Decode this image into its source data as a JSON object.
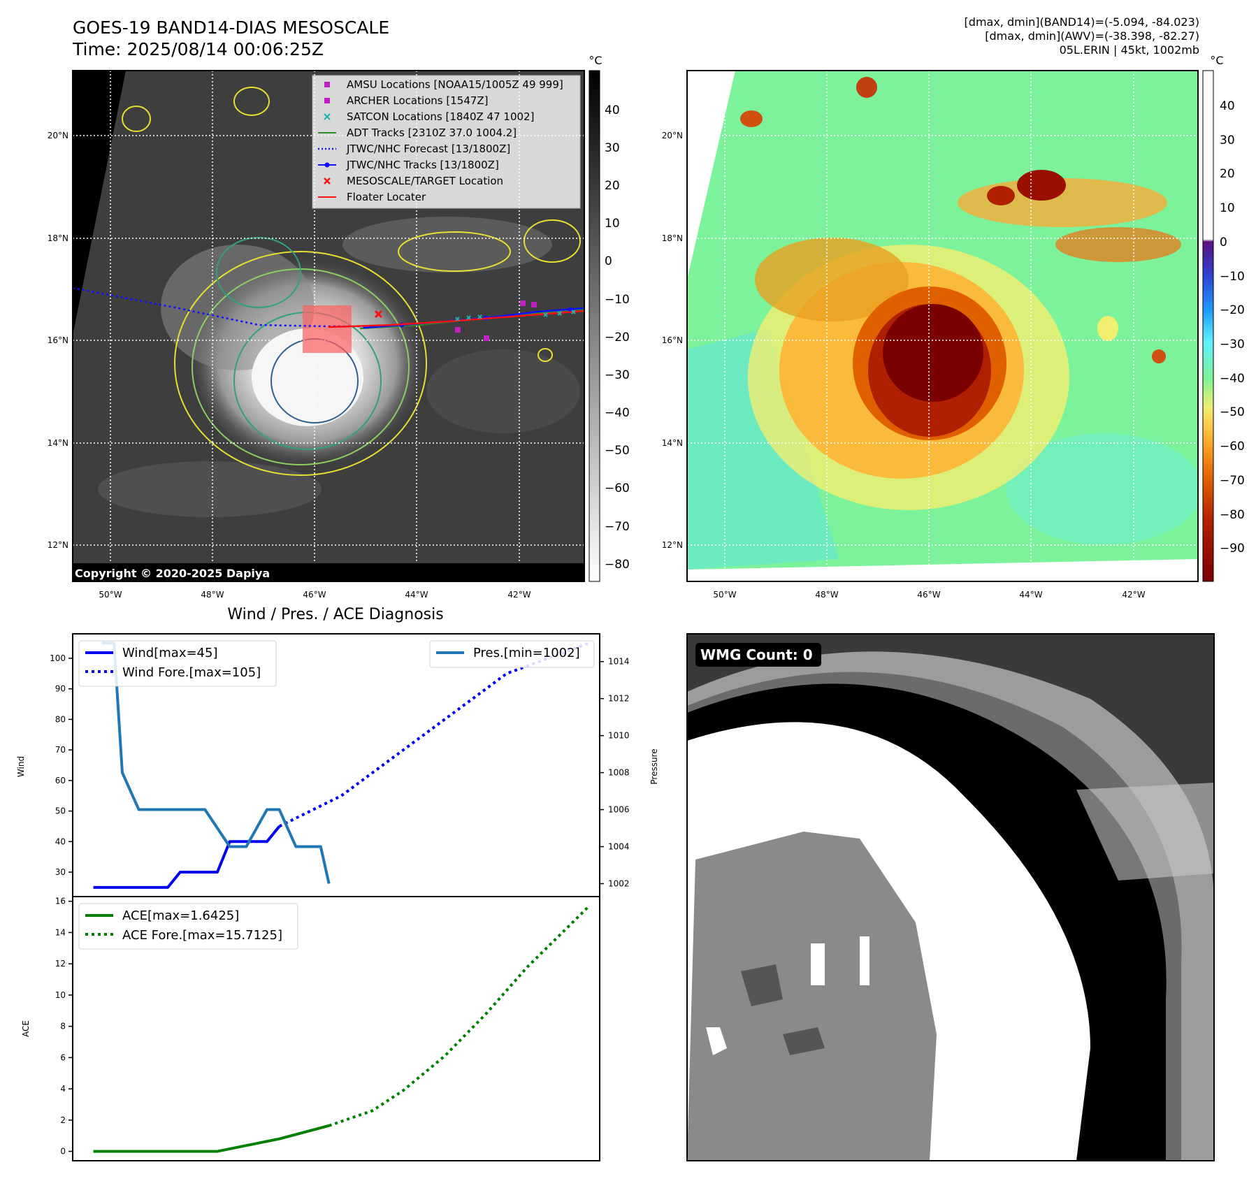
{
  "header": {
    "title_line1": "GOES-19 BAND14-DIAS MESOSCALE",
    "title_line2": "Time: 2025/08/14 00:06:25Z",
    "stats_line1": "[dmax, dmin](BAND14)=(-5.094, -84.023)",
    "stats_line2": "[dmax, dmin](AWV)=(-38.398, -82.27)",
    "stats_line3": "05L.ERIN | 45kt, 1002mb"
  },
  "ir_panel": {
    "lat_labels": [
      "20°N",
      "18°N",
      "16°N",
      "14°N",
      "12°N"
    ],
    "lon_labels": [
      "50°W",
      "48°W",
      "46°W",
      "44°W",
      "42°W"
    ],
    "copyright": "Copyright © 2020-2025 Dapiya",
    "colorbar_unit": "°C",
    "colorbar_ticks": [
      "40",
      "30",
      "20",
      "10",
      "0",
      "−10",
      "−20",
      "−30",
      "−40",
      "−50",
      "−60",
      "−70",
      "−80"
    ],
    "legend": [
      "AMSU Locations [NOAA15/1005Z 49 999]",
      "ARCHER Locations [1547Z]",
      "SATCON Locations [1840Z 47 1002]",
      "ADT Tracks [2310Z 37.0 1004.2]",
      "JTWC/NHC Forecast [13/1800Z]",
      "JTWC/NHC Tracks [13/1800Z]",
      "MESOSCALE/TARGET Location",
      "Floater Locater"
    ],
    "colors": {
      "amsu": "#c020c0",
      "archer": "#c020c0",
      "satcon": "#20b0b0",
      "adt": "#2e8b2e",
      "forecast": "#1010ff",
      "tracks": "#1010ff",
      "target": "#ff1010",
      "floater": "#ff1010"
    }
  },
  "awv_panel": {
    "lat_labels": [
      "20°N",
      "18°N",
      "16°N",
      "14°N",
      "12°N"
    ],
    "lon_labels": [
      "50°W",
      "48°W",
      "46°W",
      "44°W",
      "42°W"
    ],
    "colorbar_unit": "°C",
    "colorbar_ticks": [
      "40",
      "30",
      "20",
      "10",
      "0",
      "−10",
      "−20",
      "−30",
      "−40",
      "−50",
      "−60",
      "−70",
      "−80",
      "−90"
    ]
  },
  "wmg_panel": {
    "label": "WMG Count: 0"
  },
  "chart_data": [
    {
      "type": "line",
      "title": "Wind / Pres. / ACE Diagnosis",
      "ylabel": "Wind",
      "y2label": "Pressure",
      "ylim": [
        22,
        108
      ],
      "y2lim": [
        1001.3,
        1015.5
      ],
      "y_ticks": [
        30,
        40,
        50,
        60,
        70,
        80,
        90,
        100
      ],
      "y2_ticks": [
        1002,
        1004,
        1006,
        1008,
        1010,
        1012,
        1014
      ],
      "series": [
        {
          "name": "Wind[max=45]",
          "axis": "left",
          "color": "#0000ee",
          "style": "solid",
          "x": [
            0,
            6,
            12,
            18,
            24,
            30,
            36,
            42,
            48,
            54,
            60,
            66,
            72,
            78,
            84,
            90
          ],
          "y": [
            25,
            25,
            25,
            25,
            25,
            25,
            25,
            30,
            30,
            30,
            30,
            40,
            40,
            40,
            40,
            45
          ]
        },
        {
          "name": "Wind Fore.[max=105]",
          "axis": "left",
          "color": "#0000ee",
          "style": "dotted",
          "x": [
            90,
            105,
            120,
            140,
            160,
            180,
            200,
            220,
            240
          ],
          "y": [
            45,
            50,
            55,
            65,
            75,
            85,
            95,
            100,
            105
          ]
        },
        {
          "name": "Pres.[min=1002]",
          "axis": "right",
          "color": "#1f77b4",
          "style": "solid",
          "x": [
            4,
            10,
            14,
            22,
            30,
            54,
            66,
            74,
            84,
            90,
            98,
            110,
            114
          ],
          "y": [
            1015,
            1015,
            1008,
            1006,
            1006,
            1006,
            1004,
            1004,
            1006,
            1006,
            1004,
            1004,
            1002
          ]
        }
      ],
      "xlim": [
        -10,
        245
      ]
    },
    {
      "type": "line",
      "ylabel": "ACE",
      "ylim": [
        -0.6,
        16.3
      ],
      "y_ticks": [
        0,
        2,
        4,
        6,
        8,
        10,
        12,
        14,
        16
      ],
      "series": [
        {
          "name": "ACE[max=1.6425]",
          "color": "#008000",
          "style": "solid",
          "x": [
            0,
            60,
            90,
            114
          ],
          "y": [
            0,
            0,
            0.8,
            1.6425
          ]
        },
        {
          "name": "ACE Fore.[max=15.7125]",
          "color": "#008000",
          "style": "dotted",
          "x": [
            114,
            135,
            150,
            170,
            190,
            210,
            230,
            240
          ],
          "y": [
            1.6425,
            2.6,
            3.9,
            6.1,
            8.8,
            11.8,
            14.4,
            15.7125
          ]
        }
      ],
      "xlim": [
        -10,
        245
      ]
    }
  ]
}
